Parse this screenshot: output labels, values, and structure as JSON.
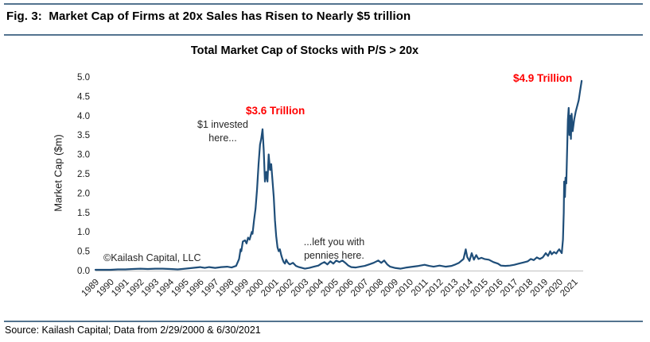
{
  "figure": {
    "title": "Fig. 3:  Market Cap of Firms at 20x Sales has Risen to Nearly $5 trillion",
    "source": "Source: Kailash Capital; Data from 2/29/2000 & 6/30/2021"
  },
  "colors": {
    "rule": "#53738f",
    "line": "#1f4e79",
    "axis": "#c0c0c0",
    "annotation_red": "#ff0000",
    "tick_text": "#1a1a1a"
  },
  "chart_data": {
    "type": "line",
    "title": "Total Market Cap of Stocks with P/S > 20x",
    "xlabel": "",
    "ylabel": "Market Cap ($m)",
    "xlim": [
      1989,
      2021.6
    ],
    "ylim": [
      0,
      5
    ],
    "grid": false,
    "legend": null,
    "y_tick_labels": [
      "0.0",
      "0.5",
      "1.0",
      "1.5",
      "2.0",
      "2.5",
      "3.0",
      "3.5",
      "4.0",
      "4.5",
      "5.0"
    ],
    "x_tick_labels": [
      "1989",
      "1990",
      "1991",
      "1992",
      "1993",
      "1994",
      "1995",
      "1996",
      "1997",
      "1998",
      "1999",
      "2000",
      "2001",
      "2002",
      "2003",
      "2004",
      "2005",
      "2006",
      "2007",
      "2008",
      "2009",
      "2010",
      "2011",
      "2012",
      "2013",
      "2014",
      "2015",
      "2016",
      "2017",
      "2018",
      "2019",
      "2020",
      "2021"
    ],
    "annotations": {
      "watermark": {
        "text": "©Kailash Capital, LLC"
      },
      "invested": {
        "line1": "$1 invested",
        "line2": "here..."
      },
      "peak_2000": {
        "text": "$3.6 Trillion",
        "color": "#ff0000",
        "x": 2000.17,
        "y": 3.65
      },
      "pennies": {
        "line1": "...left you with",
        "line2": "pennies here."
      },
      "peak_2021": {
        "text": "$4.9 Trillion",
        "color": "#ff0000",
        "x": 2021.5,
        "y": 4.9
      }
    },
    "series": [
      {
        "name": "Total Market Cap of Stocks with P/S > 20x",
        "points": [
          [
            1989.0,
            0.02
          ],
          [
            1989.5,
            0.02
          ],
          [
            1990.0,
            0.02
          ],
          [
            1990.5,
            0.03
          ],
          [
            1991.0,
            0.03
          ],
          [
            1991.5,
            0.04
          ],
          [
            1992.0,
            0.05
          ],
          [
            1992.5,
            0.04
          ],
          [
            1993.0,
            0.05
          ],
          [
            1993.5,
            0.05
          ],
          [
            1994.0,
            0.04
          ],
          [
            1994.5,
            0.03
          ],
          [
            1995.0,
            0.05
          ],
          [
            1995.5,
            0.07
          ],
          [
            1996.0,
            0.09
          ],
          [
            1996.3,
            0.07
          ],
          [
            1996.6,
            0.09
          ],
          [
            1997.0,
            0.07
          ],
          [
            1997.4,
            0.09
          ],
          [
            1997.8,
            0.1
          ],
          [
            1998.1,
            0.08
          ],
          [
            1998.4,
            0.12
          ],
          [
            1998.6,
            0.3
          ],
          [
            1998.7,
            0.55
          ],
          [
            1998.75,
            0.5
          ],
          [
            1998.85,
            0.75
          ],
          [
            1999.0,
            0.78
          ],
          [
            1999.1,
            0.7
          ],
          [
            1999.2,
            0.85
          ],
          [
            1999.3,
            0.8
          ],
          [
            1999.45,
            1.0
          ],
          [
            1999.5,
            0.95
          ],
          [
            1999.6,
            1.3
          ],
          [
            1999.7,
            1.6
          ],
          [
            1999.8,
            2.1
          ],
          [
            1999.9,
            2.75
          ],
          [
            2000.0,
            3.25
          ],
          [
            2000.08,
            3.4
          ],
          [
            2000.17,
            3.65
          ],
          [
            2000.25,
            3.1
          ],
          [
            2000.33,
            2.3
          ],
          [
            2000.42,
            2.55
          ],
          [
            2000.5,
            2.3
          ],
          [
            2000.58,
            3.0
          ],
          [
            2000.67,
            2.6
          ],
          [
            2000.75,
            2.75
          ],
          [
            2000.83,
            2.35
          ],
          [
            2000.92,
            1.9
          ],
          [
            2001.0,
            1.3
          ],
          [
            2001.08,
            0.9
          ],
          [
            2001.17,
            0.6
          ],
          [
            2001.25,
            0.5
          ],
          [
            2001.33,
            0.55
          ],
          [
            2001.42,
            0.4
          ],
          [
            2001.5,
            0.3
          ],
          [
            2001.58,
            0.22
          ],
          [
            2001.67,
            0.18
          ],
          [
            2001.75,
            0.28
          ],
          [
            2001.83,
            0.22
          ],
          [
            2001.92,
            0.18
          ],
          [
            2002.0,
            0.16
          ],
          [
            2002.2,
            0.2
          ],
          [
            2002.4,
            0.12
          ],
          [
            2002.6,
            0.09
          ],
          [
            2002.8,
            0.07
          ],
          [
            2003.0,
            0.05
          ],
          [
            2003.3,
            0.07
          ],
          [
            2003.6,
            0.1
          ],
          [
            2003.9,
            0.13
          ],
          [
            2004.1,
            0.18
          ],
          [
            2004.3,
            0.22
          ],
          [
            2004.5,
            0.16
          ],
          [
            2004.7,
            0.24
          ],
          [
            2004.9,
            0.18
          ],
          [
            2005.1,
            0.26
          ],
          [
            2005.3,
            0.22
          ],
          [
            2005.5,
            0.26
          ],
          [
            2005.7,
            0.2
          ],
          [
            2005.9,
            0.13
          ],
          [
            2006.1,
            0.09
          ],
          [
            2006.4,
            0.08
          ],
          [
            2006.7,
            0.1
          ],
          [
            2007.0,
            0.12
          ],
          [
            2007.3,
            0.16
          ],
          [
            2007.6,
            0.2
          ],
          [
            2007.9,
            0.26
          ],
          [
            2008.1,
            0.2
          ],
          [
            2008.3,
            0.26
          ],
          [
            2008.5,
            0.16
          ],
          [
            2008.7,
            0.1
          ],
          [
            2009.0,
            0.07
          ],
          [
            2009.4,
            0.05
          ],
          [
            2009.8,
            0.08
          ],
          [
            2010.2,
            0.1
          ],
          [
            2010.6,
            0.12
          ],
          [
            2011.0,
            0.15
          ],
          [
            2011.3,
            0.12
          ],
          [
            2011.6,
            0.1
          ],
          [
            2012.0,
            0.13
          ],
          [
            2012.4,
            0.1
          ],
          [
            2012.8,
            0.12
          ],
          [
            2013.0,
            0.15
          ],
          [
            2013.3,
            0.2
          ],
          [
            2013.6,
            0.3
          ],
          [
            2013.75,
            0.55
          ],
          [
            2013.85,
            0.35
          ],
          [
            2014.0,
            0.25
          ],
          [
            2014.15,
            0.45
          ],
          [
            2014.3,
            0.28
          ],
          [
            2014.45,
            0.4
          ],
          [
            2014.6,
            0.3
          ],
          [
            2014.8,
            0.33
          ],
          [
            2015.0,
            0.3
          ],
          [
            2015.3,
            0.28
          ],
          [
            2015.6,
            0.22
          ],
          [
            2015.9,
            0.18
          ],
          [
            2016.1,
            0.13
          ],
          [
            2016.4,
            0.12
          ],
          [
            2016.7,
            0.13
          ],
          [
            2017.0,
            0.15
          ],
          [
            2017.3,
            0.18
          ],
          [
            2017.6,
            0.21
          ],
          [
            2017.9,
            0.24
          ],
          [
            2018.1,
            0.3
          ],
          [
            2018.3,
            0.27
          ],
          [
            2018.5,
            0.34
          ],
          [
            2018.7,
            0.3
          ],
          [
            2018.9,
            0.34
          ],
          [
            2019.1,
            0.45
          ],
          [
            2019.25,
            0.38
          ],
          [
            2019.4,
            0.5
          ],
          [
            2019.5,
            0.42
          ],
          [
            2019.65,
            0.48
          ],
          [
            2019.8,
            0.44
          ],
          [
            2019.9,
            0.5
          ],
          [
            2020.0,
            0.55
          ],
          [
            2020.08,
            0.5
          ],
          [
            2020.17,
            0.45
          ],
          [
            2020.25,
            0.8
          ],
          [
            2020.3,
            1.5
          ],
          [
            2020.33,
            2.3
          ],
          [
            2020.38,
            1.9
          ],
          [
            2020.42,
            2.4
          ],
          [
            2020.47,
            2.25
          ],
          [
            2020.52,
            3.0
          ],
          [
            2020.58,
            3.9
          ],
          [
            2020.63,
            4.2
          ],
          [
            2020.68,
            3.5
          ],
          [
            2020.73,
            4.0
          ],
          [
            2020.78,
            3.4
          ],
          [
            2020.83,
            4.05
          ],
          [
            2020.9,
            3.6
          ],
          [
            2021.0,
            3.9
          ],
          [
            2021.1,
            4.1
          ],
          [
            2021.2,
            4.25
          ],
          [
            2021.3,
            4.4
          ],
          [
            2021.4,
            4.65
          ],
          [
            2021.5,
            4.9
          ]
        ]
      }
    ]
  }
}
